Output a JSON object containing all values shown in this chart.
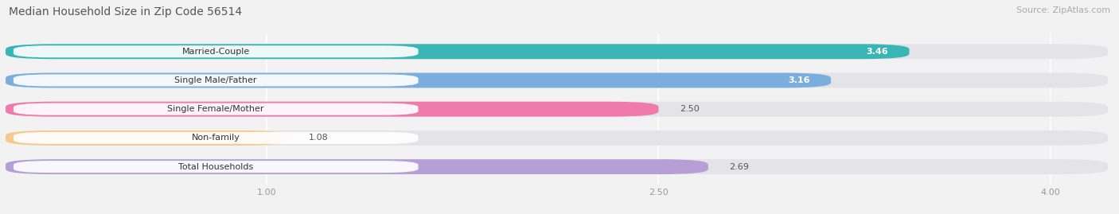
{
  "title": "Median Household Size in Zip Code 56514",
  "source": "Source: ZipAtlas.com",
  "categories": [
    "Married-Couple",
    "Single Male/Father",
    "Single Female/Mother",
    "Non-family",
    "Total Households"
  ],
  "values": [
    3.46,
    3.16,
    2.5,
    1.08,
    2.69
  ],
  "bar_colors": [
    "#3ab5b5",
    "#7baedd",
    "#f07aab",
    "#f5c98a",
    "#b59fd4"
  ],
  "xlim": [
    0,
    4.22
  ],
  "xticks": [
    1.0,
    2.5,
    4.0
  ],
  "background_color": "#f2f2f2",
  "bar_bg_color": "#e4e4e8",
  "title_fontsize": 10,
  "source_fontsize": 8,
  "bar_height": 0.52,
  "label_fontsize": 8,
  "value_fontsize": 8,
  "value_threshold": 3.0,
  "bar_gap": 0.18
}
